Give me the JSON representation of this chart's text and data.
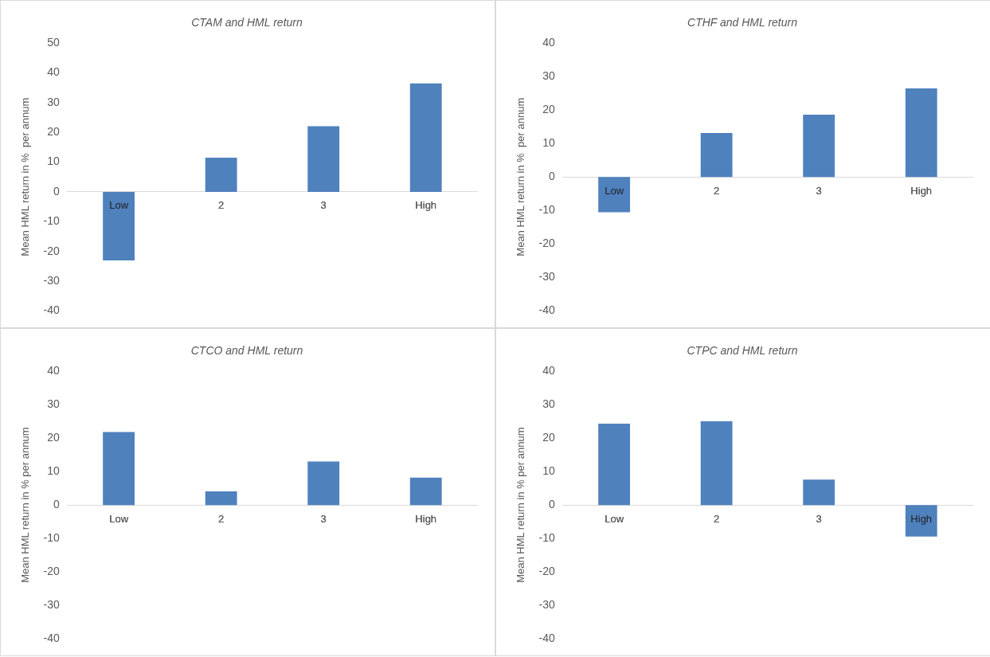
{
  "chart_data": [
    {
      "type": "bar",
      "title": "CTAM and HML return",
      "ylabel": "Mean HML return in %  per annum",
      "categories": [
        "Low",
        "2",
        "3",
        "High"
      ],
      "values": [
        -23,
        11.5,
        22,
        36.4
      ],
      "color": "#4f81bd",
      "ylim": [
        -40,
        50
      ],
      "yticks": [
        -40,
        -30,
        -20,
        -10,
        0,
        10,
        20,
        30,
        40,
        50
      ]
    },
    {
      "type": "bar",
      "title": "CTHF and HML return",
      "ylabel": "Mean HML return in %  per annum",
      "categories": [
        "Low",
        "2",
        "3",
        "High"
      ],
      "values": [
        -10.5,
        13.1,
        18.6,
        26.4
      ],
      "color": "#4f81bd",
      "ylim": [
        -40,
        40
      ],
      "yticks": [
        -40,
        -30,
        -20,
        -10,
        0,
        10,
        20,
        30,
        40
      ]
    },
    {
      "type": "bar",
      "title": "CTCO and HML return",
      "ylabel": "Mean HML return in % per annum",
      "categories": [
        "Low",
        "2",
        "3",
        "High"
      ],
      "values": [
        21.8,
        4.1,
        13,
        8.2
      ],
      "color": "#4f81bd",
      "ylim": [
        -40,
        40
      ],
      "yticks": [
        -40,
        -30,
        -20,
        -10,
        0,
        10,
        20,
        30,
        40
      ]
    },
    {
      "type": "bar",
      "title": "CTPC and HML return",
      "ylabel": "Mean HML return in % per annum",
      "categories": [
        "Low",
        "2",
        "3",
        "High"
      ],
      "values": [
        24.3,
        25,
        7.6,
        -9.4
      ],
      "color": "#4f81bd",
      "ylim": [
        -40,
        40
      ],
      "yticks": [
        -40,
        -30,
        -20,
        -10,
        0,
        10,
        20,
        30,
        40
      ]
    }
  ]
}
